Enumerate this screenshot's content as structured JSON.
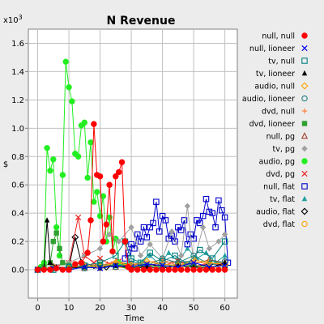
{
  "chart_data": {
    "type": "line",
    "title": "N Revenue",
    "xlabel": "Time",
    "ylabel": "$",
    "y_multiplier": "x10",
    "y_multiplier_exp": "3",
    "xlim": [
      -3,
      64
    ],
    "ylim": [
      -0.2,
      1.7
    ],
    "x_ticks": [
      0,
      10,
      20,
      30,
      40,
      50,
      60
    ],
    "y_ticks": [
      0.0,
      0.2,
      0.4,
      0.6,
      0.8,
      1.0,
      1.2,
      1.4,
      1.6
    ],
    "y_tick_labels": [
      "0.0",
      "0.2",
      "0.4",
      "0.6",
      "0.8",
      "1.0",
      "1.2",
      "1.4",
      "1.6"
    ],
    "grid": true,
    "legend_position": "right",
    "series": [
      {
        "name": "null, null",
        "color": "#ff0000",
        "marker": "circle-filled",
        "points": [
          [
            0,
            0
          ],
          [
            2,
            0
          ],
          [
            4,
            0
          ],
          [
            6,
            0.01
          ],
          [
            8,
            0
          ],
          [
            10,
            0
          ],
          [
            12,
            0.04
          ],
          [
            14,
            0.05
          ],
          [
            16,
            0.12
          ],
          [
            17,
            0.35
          ],
          [
            18,
            1.03
          ],
          [
            19,
            0.67
          ],
          [
            20,
            0.66
          ],
          [
            21,
            0.2
          ],
          [
            22,
            0.32
          ],
          [
            23,
            0.6
          ],
          [
            24,
            0.13
          ],
          [
            25,
            0.66
          ],
          [
            26,
            0.69
          ],
          [
            27,
            0.76
          ],
          [
            28,
            0.2
          ],
          [
            29,
            0.02
          ],
          [
            30,
            0
          ],
          [
            32,
            0
          ],
          [
            34,
            0
          ],
          [
            36,
            0
          ],
          [
            38,
            0
          ],
          [
            40,
            0
          ],
          [
            42,
            0
          ],
          [
            44,
            0
          ],
          [
            46,
            0
          ],
          [
            48,
            0
          ],
          [
            50,
            0
          ],
          [
            52,
            0
          ],
          [
            54,
            0
          ],
          [
            56,
            0
          ],
          [
            58,
            0
          ],
          [
            60,
            0
          ]
        ]
      },
      {
        "name": "null, lioneer",
        "color": "#0000ee",
        "marker": "x",
        "points": [
          [
            0,
            0
          ],
          [
            5,
            0.01
          ],
          [
            10,
            0
          ],
          [
            15,
            0.02
          ],
          [
            20,
            0.01
          ],
          [
            25,
            0.03
          ],
          [
            30,
            0.02
          ],
          [
            35,
            0.04
          ],
          [
            40,
            0.03
          ],
          [
            45,
            0.02
          ],
          [
            50,
            0.05
          ],
          [
            55,
            0.02
          ],
          [
            60,
            0.03
          ]
        ]
      },
      {
        "name": "tv, null",
        "color": "#008080",
        "marker": "square-open",
        "points": [
          [
            0,
            0
          ],
          [
            5,
            0
          ],
          [
            10,
            0.02
          ],
          [
            15,
            0.03
          ],
          [
            20,
            0.05
          ],
          [
            25,
            0.1
          ],
          [
            28,
            0.2
          ],
          [
            30,
            0.08
          ],
          [
            33,
            0.05
          ],
          [
            36,
            0.12
          ],
          [
            40,
            0.06
          ],
          [
            44,
            0.1
          ],
          [
            48,
            0.04
          ],
          [
            52,
            0.14
          ],
          [
            56,
            0.08
          ],
          [
            60,
            0.2
          ]
        ]
      },
      {
        "name": "tv, lioneer",
        "color": "#000000",
        "marker": "triangle-filled",
        "points": [
          [
            0,
            0
          ],
          [
            2,
            0.01
          ],
          [
            3,
            0.35
          ],
          [
            4,
            0.05
          ],
          [
            6,
            0.02
          ],
          [
            10,
            0.01
          ],
          [
            15,
            0.02
          ],
          [
            20,
            0.01
          ],
          [
            25,
            0.03
          ],
          [
            30,
            0.01
          ],
          [
            35,
            0.02
          ],
          [
            40,
            0.01
          ],
          [
            45,
            0.03
          ],
          [
            50,
            0.02
          ],
          [
            55,
            0.01
          ],
          [
            60,
            0.05
          ]
        ]
      },
      {
        "name": "audio, null",
        "color": "#ffa500",
        "marker": "diamond-open",
        "points": [
          [
            0,
            0
          ],
          [
            5,
            0.02
          ],
          [
            10,
            0.01
          ],
          [
            15,
            0.03
          ],
          [
            20,
            0.02
          ],
          [
            25,
            0.05
          ],
          [
            30,
            0.03
          ],
          [
            35,
            0.06
          ],
          [
            40,
            0.04
          ],
          [
            45,
            0.03
          ],
          [
            50,
            0.07
          ],
          [
            55,
            0.05
          ],
          [
            60,
            0.04
          ]
        ]
      },
      {
        "name": "audio, lioneer",
        "color": "#208080",
        "marker": "circle-open",
        "points": [
          [
            0,
            0
          ],
          [
            5,
            0.01
          ],
          [
            10,
            0.02
          ],
          [
            15,
            0.01
          ],
          [
            20,
            0.03
          ],
          [
            25,
            0.02
          ],
          [
            30,
            0.06
          ],
          [
            35,
            0.03
          ],
          [
            40,
            0.08
          ],
          [
            45,
            0.05
          ],
          [
            50,
            0.1
          ],
          [
            55,
            0.04
          ],
          [
            60,
            0.06
          ]
        ]
      },
      {
        "name": "dvd, null",
        "color": "#ff8040",
        "marker": "plus",
        "points": [
          [
            0,
            0
          ],
          [
            5,
            0.02
          ],
          [
            10,
            0.01
          ],
          [
            15,
            0.04
          ],
          [
            20,
            0.03
          ],
          [
            25,
            0.06
          ],
          [
            30,
            0.04
          ],
          [
            35,
            0.05
          ],
          [
            40,
            0.07
          ],
          [
            45,
            0.03
          ],
          [
            50,
            0.06
          ],
          [
            55,
            0.04
          ],
          [
            60,
            0.05
          ]
        ]
      },
      {
        "name": "dvd, lioneer",
        "color": "#30a030",
        "marker": "square-filled",
        "points": [
          [
            0,
            0
          ],
          [
            2,
            0.02
          ],
          [
            4,
            0.05
          ],
          [
            5,
            0.2
          ],
          [
            6,
            0.26
          ],
          [
            7,
            0.15
          ],
          [
            8,
            0.05
          ],
          [
            10,
            0.03
          ],
          [
            15,
            0.02
          ],
          [
            20,
            0.04
          ],
          [
            25,
            0.03
          ],
          [
            30,
            0.02
          ],
          [
            35,
            0.03
          ],
          [
            40,
            0.02
          ],
          [
            45,
            0.04
          ],
          [
            50,
            0.03
          ],
          [
            55,
            0.02
          ],
          [
            60,
            0.03
          ]
        ]
      },
      {
        "name": "null, pg",
        "color": "#a04030",
        "marker": "triangle-open",
        "points": [
          [
            0,
            0
          ],
          [
            5,
            0.01
          ],
          [
            10,
            0.02
          ],
          [
            15,
            0.01
          ],
          [
            20,
            0.03
          ],
          [
            25,
            0.02
          ],
          [
            30,
            0.04
          ],
          [
            35,
            0.03
          ],
          [
            40,
            0.05
          ],
          [
            45,
            0.06
          ],
          [
            50,
            0.04
          ],
          [
            55,
            0.07
          ],
          [
            60,
            0.05
          ]
        ]
      },
      {
        "name": "tv, pg",
        "color": "#a0a0a0",
        "marker": "diamond-filled",
        "points": [
          [
            0,
            0
          ],
          [
            5,
            0.03
          ],
          [
            10,
            0.05
          ],
          [
            15,
            0.1
          ],
          [
            20,
            0.15
          ],
          [
            23,
            0.25
          ],
          [
            26,
            0.2
          ],
          [
            30,
            0.3
          ],
          [
            33,
            0.1
          ],
          [
            36,
            0.18
          ],
          [
            40,
            0.08
          ],
          [
            43,
            0.27
          ],
          [
            46,
            0.1
          ],
          [
            48,
            0.45
          ],
          [
            50,
            0.05
          ],
          [
            53,
            0.3
          ],
          [
            55,
            0.15
          ],
          [
            58,
            0.2
          ],
          [
            60,
            0.25
          ]
        ]
      },
      {
        "name": "audio, pg",
        "color": "#22ee22",
        "marker": "circle-filled",
        "points": [
          [
            0,
            0
          ],
          [
            1,
            0.02
          ],
          [
            2,
            0.05
          ],
          [
            3,
            0.86
          ],
          [
            4,
            0.7
          ],
          [
            5,
            0.78
          ],
          [
            6,
            0.3
          ],
          [
            7,
            0.1
          ],
          [
            8,
            0.67
          ],
          [
            9,
            1.47
          ],
          [
            10,
            1.29
          ],
          [
            11,
            1.19
          ],
          [
            12,
            0.82
          ],
          [
            13,
            0.8
          ],
          [
            14,
            1.02
          ],
          [
            15,
            1.04
          ],
          [
            16,
            0.65
          ],
          [
            17,
            0.9
          ],
          [
            18,
            0.48
          ],
          [
            19,
            0.55
          ],
          [
            20,
            0.38
          ],
          [
            21,
            0.52
          ],
          [
            22,
            0.2
          ],
          [
            23,
            0.37
          ],
          [
            24,
            0.13
          ],
          [
            25,
            0.22
          ],
          [
            26,
            0.05
          ],
          [
            28,
            0.03
          ],
          [
            30,
            0.02
          ]
        ]
      },
      {
        "name": "dvd, pg",
        "color": "#ee2222",
        "marker": "x",
        "points": [
          [
            0,
            0
          ],
          [
            5,
            0.02
          ],
          [
            10,
            0.05
          ],
          [
            13,
            0.37
          ],
          [
            15,
            0.1
          ],
          [
            18,
            0.05
          ],
          [
            20,
            0.08
          ],
          [
            23,
            0.04
          ],
          [
            26,
            0.06
          ],
          [
            30,
            0.02
          ],
          [
            35,
            0.04
          ],
          [
            40,
            0.03
          ],
          [
            45,
            0.06
          ],
          [
            50,
            0.02
          ],
          [
            55,
            0.05
          ],
          [
            60,
            0.03
          ]
        ]
      },
      {
        "name": "null, flat",
        "color": "#0000cc",
        "marker": "square-open",
        "points": [
          [
            28,
            0.08
          ],
          [
            29,
            0.12
          ],
          [
            30,
            0.18
          ],
          [
            31,
            0.15
          ],
          [
            32,
            0.25
          ],
          [
            33,
            0.2
          ],
          [
            34,
            0.3
          ],
          [
            35,
            0.23
          ],
          [
            36,
            0.3
          ],
          [
            37,
            0.33
          ],
          [
            38,
            0.48
          ],
          [
            39,
            0.27
          ],
          [
            40,
            0.38
          ],
          [
            41,
            0.35
          ],
          [
            42,
            0.22
          ],
          [
            43,
            0.24
          ],
          [
            44,
            0.2
          ],
          [
            45,
            0.3
          ],
          [
            46,
            0.28
          ],
          [
            47,
            0.35
          ],
          [
            48,
            0.18
          ],
          [
            49,
            0.25
          ],
          [
            50,
            0.22
          ],
          [
            51,
            0.35
          ],
          [
            52,
            0.33
          ],
          [
            53,
            0.38
          ],
          [
            54,
            0.5
          ],
          [
            55,
            0.41
          ],
          [
            56,
            0.4
          ],
          [
            57,
            0.3
          ],
          [
            58,
            0.49
          ],
          [
            59,
            0.42
          ],
          [
            60,
            0.37
          ],
          [
            61,
            0.05
          ]
        ]
      },
      {
        "name": "tv, flat",
        "color": "#20a0a0",
        "marker": "triangle-filled",
        "points": [
          [
            30,
            0.02
          ],
          [
            33,
            0.05
          ],
          [
            36,
            0.1
          ],
          [
            39,
            0.04
          ],
          [
            42,
            0.12
          ],
          [
            45,
            0.06
          ],
          [
            48,
            0.15
          ],
          [
            51,
            0.08
          ],
          [
            54,
            0.12
          ],
          [
            57,
            0.05
          ],
          [
            60,
            0.1
          ]
        ]
      },
      {
        "name": "audio, flat",
        "color": "#000000",
        "marker": "diamond-open",
        "points": [
          [
            0,
            0
          ],
          [
            5,
            0.01
          ],
          [
            10,
            0.02
          ],
          [
            12,
            0.23
          ],
          [
            14,
            0.05
          ],
          [
            18,
            0.03
          ],
          [
            22,
            0.02
          ],
          [
            26,
            0.05
          ],
          [
            30,
            0.03
          ],
          [
            35,
            0.02
          ],
          [
            40,
            0.04
          ],
          [
            45,
            0.03
          ],
          [
            50,
            0.02
          ],
          [
            55,
            0.04
          ],
          [
            60,
            0.03
          ]
        ]
      },
      {
        "name": "dvd, flat",
        "color": "#ffa500",
        "marker": "circle-open",
        "points": [
          [
            0,
            0
          ],
          [
            5,
            0.01
          ],
          [
            10,
            0.02
          ],
          [
            15,
            0.01
          ],
          [
            20,
            0.03
          ],
          [
            25,
            0.02
          ],
          [
            30,
            0.01
          ],
          [
            35,
            0.03
          ],
          [
            40,
            0.02
          ],
          [
            45,
            0.01
          ],
          [
            50,
            0.03
          ],
          [
            55,
            0.02
          ],
          [
            60,
            0.01
          ]
        ]
      }
    ]
  }
}
